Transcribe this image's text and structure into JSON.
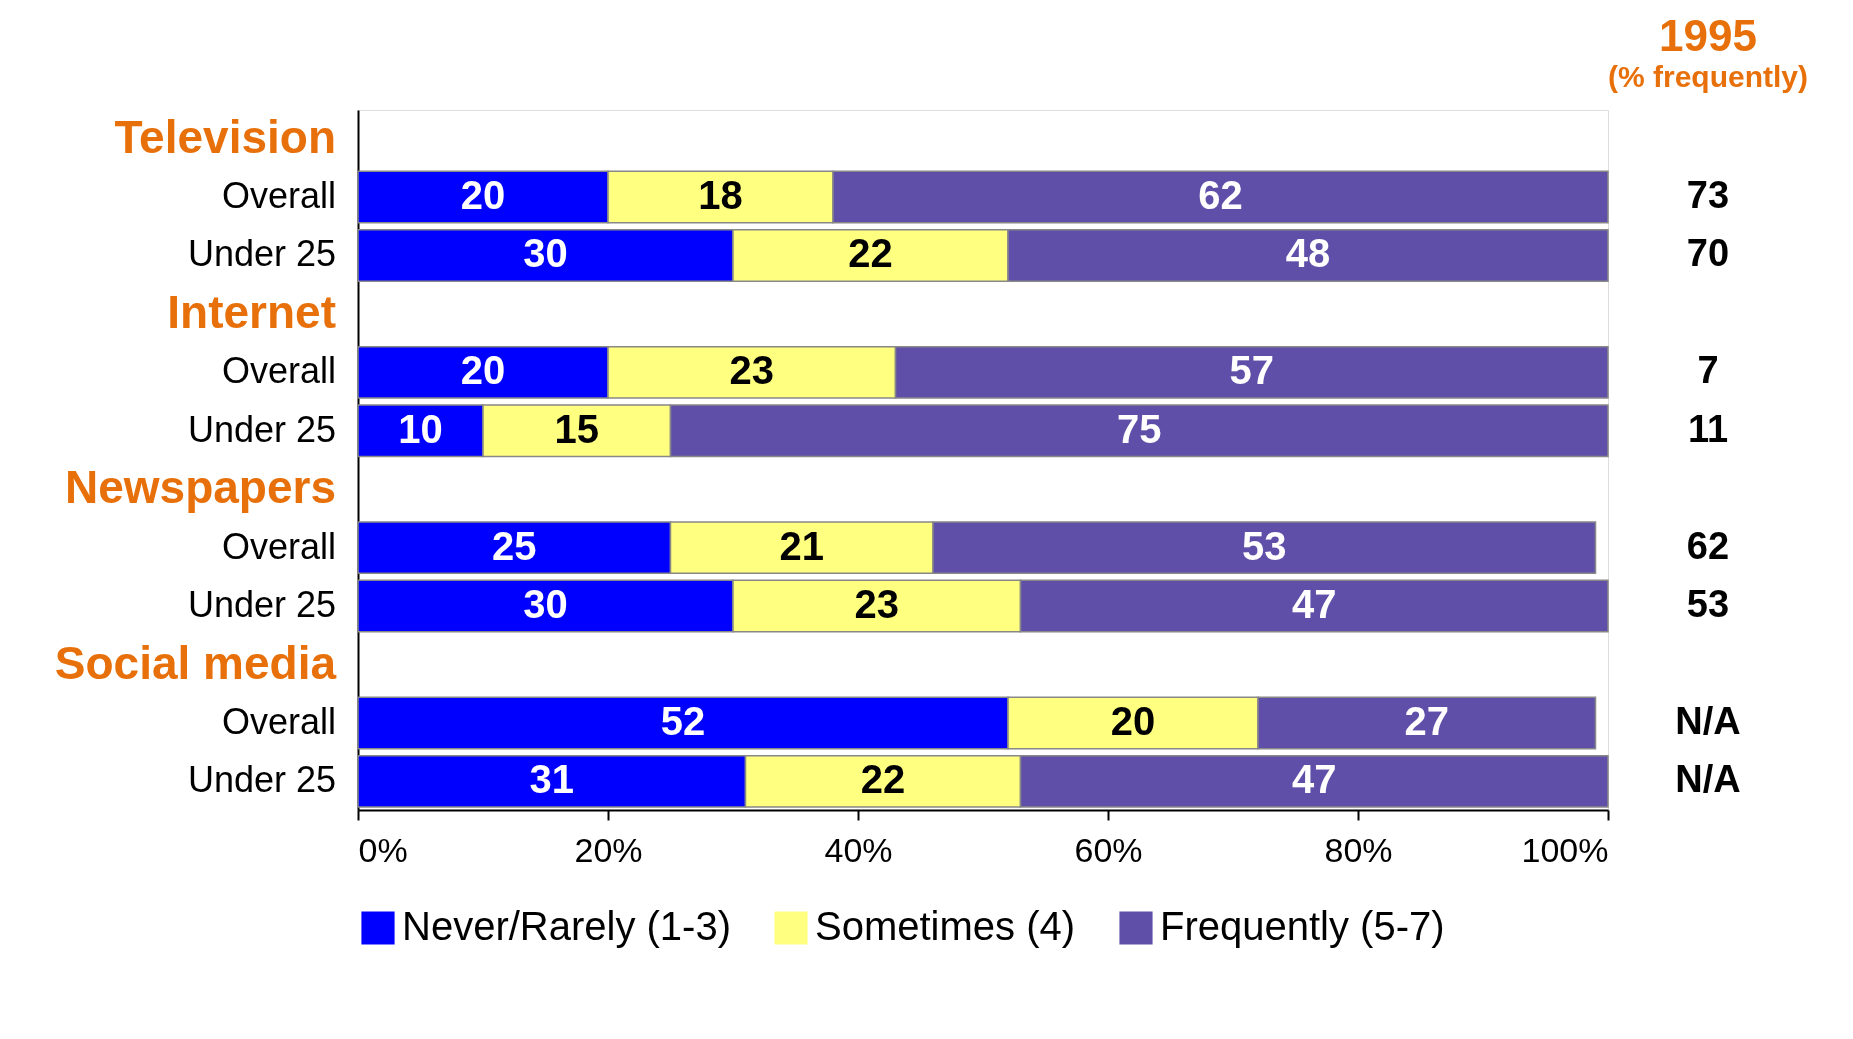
{
  "chart_data": {
    "type": "bar",
    "orientation": "horizontal",
    "stacked": true,
    "data_labels": true,
    "legend": "bottom",
    "grid": false,
    "categories": [
      "Television",
      "Overall",
      "Under 25",
      "Internet",
      "Overall",
      "Under 25",
      "Newspapers",
      "Overall",
      "Under 25",
      "Social media",
      "Overall",
      "Under 25"
    ],
    "series": [
      {
        "name": "Never/Rarely (1-3)",
        "color": "#0000ff",
        "values": [
          null,
          20,
          30,
          null,
          20,
          10,
          null,
          25,
          30,
          null,
          52,
          31
        ]
      },
      {
        "name": "Sometimes (4)",
        "color": "#ffff80",
        "values": [
          null,
          18,
          22,
          null,
          23,
          15,
          null,
          21,
          23,
          null,
          20,
          22
        ]
      },
      {
        "name": "Frequently (5-7)",
        "color": "#604fa8",
        "values": [
          null,
          62,
          48,
          null,
          57,
          75,
          null,
          53,
          47,
          null,
          27,
          47
        ]
      }
    ],
    "xlim": [
      0,
      100
    ],
    "xticks": [
      {
        "value": 0,
        "label": "0%"
      },
      {
        "value": 20,
        "label": "20%"
      },
      {
        "value": 40,
        "label": "40%"
      },
      {
        "value": 60,
        "label": "60%"
      },
      {
        "value": 80,
        "label": "80%"
      },
      {
        "value": 100,
        "label": "100%"
      }
    ],
    "annotations": [
      "1995",
      "(% frequently)",
      "73",
      "70",
      "7",
      "11",
      "62",
      "53",
      "N/A",
      "N/A"
    ]
  }
}
